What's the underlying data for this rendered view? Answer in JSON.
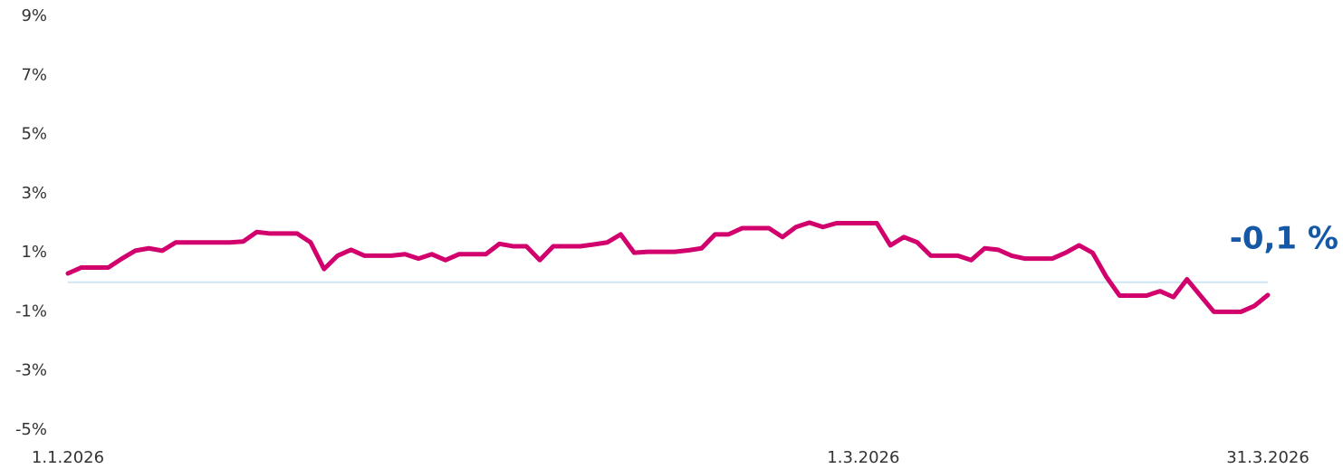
{
  "chart_data": {
    "type": "line",
    "annotation": "-0,1 %",
    "x": [
      "1.1.2026",
      "2.1.2026",
      "3.1.2026",
      "4.1.2026",
      "5.1.2026",
      "6.1.2026",
      "7.1.2026",
      "8.1.2026",
      "9.1.2026",
      "10.1.2026",
      "11.1.2026",
      "12.1.2026",
      "13.1.2026",
      "14.1.2026",
      "15.1.2026",
      "16.1.2026",
      "17.1.2026",
      "18.1.2026",
      "19.1.2026",
      "20.1.2026",
      "21.1.2026",
      "22.1.2026",
      "23.1.2026",
      "24.1.2026",
      "25.1.2026",
      "26.1.2026",
      "27.1.2026",
      "28.1.2026",
      "29.1.2026",
      "30.1.2026",
      "31.1.2026",
      "1.2.2026",
      "2.2.2026",
      "3.2.2026",
      "4.2.2026",
      "5.2.2026",
      "6.2.2026",
      "7.2.2026",
      "8.2.2026",
      "9.2.2026",
      "10.2.2026",
      "11.2.2026",
      "12.2.2026",
      "13.2.2026",
      "14.2.2026",
      "15.2.2026",
      "16.2.2026",
      "17.2.2026",
      "18.2.2026",
      "19.2.2026",
      "20.2.2026",
      "21.2.2026",
      "22.2.2026",
      "23.2.2026",
      "24.2.2026",
      "25.2.2026",
      "26.2.2026",
      "27.2.2026",
      "28.2.2026",
      "1.3.2026",
      "2.3.2026",
      "3.3.2026",
      "4.3.2026",
      "5.3.2026",
      "6.3.2026",
      "7.3.2026",
      "8.3.2026",
      "9.3.2026",
      "10.3.2026",
      "11.3.2026",
      "12.3.2026",
      "13.3.2026",
      "14.3.2026",
      "15.3.2026",
      "16.3.2026",
      "17.3.2026",
      "18.3.2026",
      "19.3.2026",
      "20.3.2026",
      "21.3.2026",
      "22.3.2026",
      "23.3.2026",
      "24.3.2026",
      "25.3.2026",
      "26.3.2026",
      "27.3.2026",
      "28.3.2026",
      "29.3.2026",
      "30.3.2026",
      "31.3.2026"
    ],
    "series": [
      {
        "color": "#d1006c",
        "values": [
          0.3,
          0.5,
          0.5,
          0.5,
          0.8,
          1.07,
          1.15,
          1.07,
          1.35,
          1.35,
          1.35,
          1.35,
          1.35,
          1.38,
          1.7,
          1.65,
          1.65,
          1.65,
          1.35,
          0.45,
          0.9,
          1.1,
          0.9,
          0.9,
          0.9,
          0.95,
          0.8,
          0.95,
          0.75,
          0.95,
          0.95,
          0.95,
          1.3,
          1.22,
          1.22,
          0.75,
          1.22,
          1.22,
          1.22,
          1.28,
          1.35,
          1.62,
          1.0,
          1.03,
          1.03,
          1.03,
          1.08,
          1.15,
          1.62,
          1.62,
          1.83,
          1.83,
          1.83,
          1.53,
          1.87,
          2.02,
          1.87,
          2.0,
          2.0,
          2.0,
          2.0,
          1.25,
          1.53,
          1.35,
          0.9,
          0.9,
          0.9,
          0.75,
          1.15,
          1.1,
          0.9,
          0.8,
          0.8,
          0.8,
          1.0,
          1.25,
          1.0,
          0.2,
          -0.45,
          -0.45,
          -0.45,
          -0.3,
          -0.5,
          0.1,
          -0.45,
          -1.0,
          -1.0,
          -1.0,
          -0.8,
          -0.43
        ]
      }
    ],
    "xticks": [
      "1.1.2026",
      "1.3.2026",
      "31.3.2026"
    ],
    "ylim": [
      -5,
      9
    ],
    "yticks": [
      {
        "value": 9,
        "label": "9%"
      },
      {
        "value": 7,
        "label": "7%"
      },
      {
        "value": 5,
        "label": "5%"
      },
      {
        "value": 3,
        "label": "3%"
      },
      {
        "value": 1,
        "label": "1%"
      },
      {
        "value": -1,
        "label": "-1%"
      },
      {
        "value": -3,
        "label": "-3%"
      },
      {
        "value": -5,
        "label": "-5%"
      }
    ],
    "baseline": 0,
    "baseline_color": "#cfe6f5"
  }
}
